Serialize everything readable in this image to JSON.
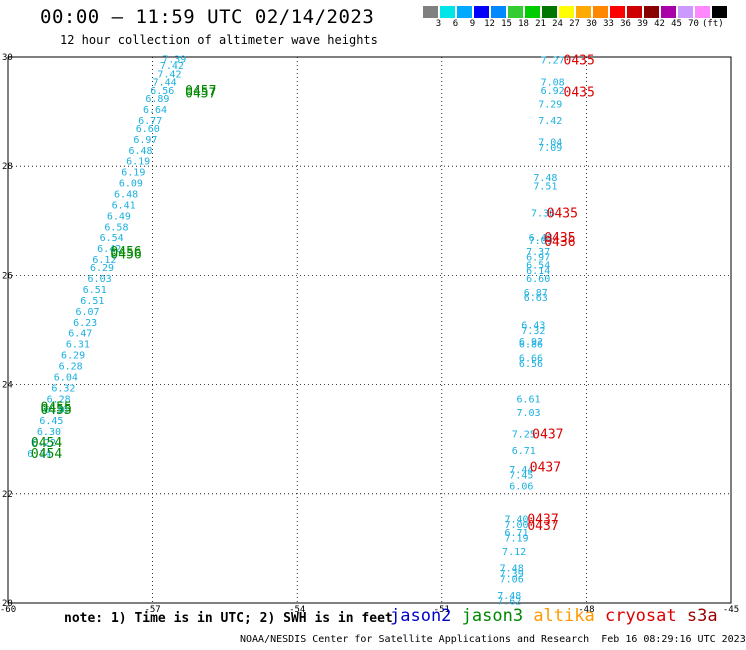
{
  "header": {
    "title": "00:00 – 11:59 UTC 02/14/2023",
    "subtitle": "12 hour collection of altimeter wave heights"
  },
  "legend": {
    "colors": [
      "#808080",
      "#00e5e5",
      "#00aaff",
      "#0000ff",
      "#0088ff",
      "#33cc33",
      "#00cc00",
      "#007700",
      "#ffff00",
      "#ffaa00",
      "#ff8800",
      "#ff0000",
      "#cc0000",
      "#880000",
      "#aa00aa",
      "#cc99ff",
      "#ff88ff",
      "#000000"
    ],
    "labels": [
      "3",
      "6",
      "9",
      "12",
      "15",
      "18",
      "21",
      "24",
      "27",
      "30",
      "33",
      "36",
      "39",
      "42",
      "45",
      "70",
      "(ft)"
    ]
  },
  "chart_data": {
    "type": "scatter",
    "xlim": [
      -60,
      -45
    ],
    "ylim": [
      20,
      30
    ],
    "xticks": [
      "-60",
      "-57",
      "-54",
      "-51",
      "-48",
      "-45"
    ],
    "yticks": [
      "30",
      "28",
      "26",
      "24",
      "22",
      "20"
    ],
    "colors": {
      "wave": "#1ab0e0",
      "jason3": "#008800",
      "cryosat": "#dd0000"
    },
    "tracks": [
      {
        "name": "west",
        "points": [
          {
            "x": -56.55,
            "y": 29.97,
            "v": "7.39"
          },
          {
            "x": -56.6,
            "y": 29.85,
            "v": "7.42"
          },
          {
            "x": -56.65,
            "y": 29.7,
            "v": "7.42"
          },
          {
            "x": -56.75,
            "y": 29.55,
            "v": "7.44"
          },
          {
            "x": -56.8,
            "y": 29.4,
            "v": "6.56"
          },
          {
            "x": -56.9,
            "y": 29.25,
            "v": "6.89"
          },
          {
            "x": -56.95,
            "y": 29.05,
            "v": "6.64"
          },
          {
            "x": -57.05,
            "y": 28.85,
            "v": "6.77"
          },
          {
            "x": -57.1,
            "y": 28.7,
            "v": "6.60"
          },
          {
            "x": -57.15,
            "y": 28.5,
            "v": "6.97"
          },
          {
            "x": -57.25,
            "y": 28.3,
            "v": "6.48"
          },
          {
            "x": -57.3,
            "y": 28.1,
            "v": "6.19"
          },
          {
            "x": -57.4,
            "y": 27.9,
            "v": "6.19"
          },
          {
            "x": -57.45,
            "y": 27.7,
            "v": "6.09"
          },
          {
            "x": -57.55,
            "y": 27.5,
            "v": "6.48"
          },
          {
            "x": -57.6,
            "y": 27.3,
            "v": "6.41"
          },
          {
            "x": -57.7,
            "y": 27.1,
            "v": "6.49"
          },
          {
            "x": -57.75,
            "y": 26.9,
            "v": "6.58"
          },
          {
            "x": -57.85,
            "y": 26.7,
            "v": "6.54"
          },
          {
            "x": -57.9,
            "y": 26.5,
            "v": "6.42"
          },
          {
            "x": -58.0,
            "y": 26.3,
            "v": "6.12"
          },
          {
            "x": -58.05,
            "y": 26.15,
            "v": "6.29"
          },
          {
            "x": -58.1,
            "y": 25.95,
            "v": "6.03"
          },
          {
            "x": -58.2,
            "y": 25.75,
            "v": "6.51"
          },
          {
            "x": -58.25,
            "y": 25.55,
            "v": "6.51"
          },
          {
            "x": -58.35,
            "y": 25.35,
            "v": "6.07"
          },
          {
            "x": -58.4,
            "y": 25.15,
            "v": "6.23"
          },
          {
            "x": -58.5,
            "y": 24.95,
            "v": "6.47"
          },
          {
            "x": -58.55,
            "y": 24.75,
            "v": "6.31"
          },
          {
            "x": -58.65,
            "y": 24.55,
            "v": "6.29"
          },
          {
            "x": -58.7,
            "y": 24.35,
            "v": "6.28"
          },
          {
            "x": -58.8,
            "y": 24.15,
            "v": "6.04"
          },
          {
            "x": -58.85,
            "y": 23.95,
            "v": "6.32"
          },
          {
            "x": -58.95,
            "y": 23.75,
            "v": "6.28"
          },
          {
            "x": -59.0,
            "y": 23.55,
            "v": "6.36"
          },
          {
            "x": -59.1,
            "y": 23.35,
            "v": "6.45"
          },
          {
            "x": -59.15,
            "y": 23.15,
            "v": "6.30"
          },
          {
            "x": -59.25,
            "y": 22.95,
            "v": "6.22"
          },
          {
            "x": -59.35,
            "y": 22.75,
            "v": "6.34"
          }
        ]
      },
      {
        "name": "east",
        "points": [
          {
            "x": -48.7,
            "y": 29.95,
            "v": "7.27"
          },
          {
            "x": -48.7,
            "y": 29.55,
            "v": "7.08"
          },
          {
            "x": -48.7,
            "y": 29.4,
            "v": "6.92"
          },
          {
            "x": -48.75,
            "y": 29.15,
            "v": "7.29"
          },
          {
            "x": -48.75,
            "y": 28.85,
            "v": "7.42"
          },
          {
            "x": -48.75,
            "y": 28.45,
            "v": "7.04"
          },
          {
            "x": -48.75,
            "y": 28.35,
            "v": "7.09"
          },
          {
            "x": -48.85,
            "y": 27.8,
            "v": "7.48"
          },
          {
            "x": -48.85,
            "y": 27.65,
            "v": "7.51"
          },
          {
            "x": -48.9,
            "y": 27.15,
            "v": "7.36"
          },
          {
            "x": -48.95,
            "y": 26.7,
            "v": "6.48"
          },
          {
            "x": -48.95,
            "y": 26.65,
            "v": "7.09"
          },
          {
            "x": -49.0,
            "y": 26.45,
            "v": "7.37"
          },
          {
            "x": -49.0,
            "y": 26.35,
            "v": "6.97"
          },
          {
            "x": -49.0,
            "y": 26.2,
            "v": "6.54"
          },
          {
            "x": -49.0,
            "y": 26.1,
            "v": "6.14"
          },
          {
            "x": -49.0,
            "y": 25.95,
            "v": "6.60"
          },
          {
            "x": -49.05,
            "y": 25.7,
            "v": "6.87"
          },
          {
            "x": -49.05,
            "y": 25.6,
            "v": "6.63"
          },
          {
            "x": -49.1,
            "y": 25.1,
            "v": "6.43"
          },
          {
            "x": -49.1,
            "y": 25.0,
            "v": "7.32"
          },
          {
            "x": -49.15,
            "y": 24.8,
            "v": "6.92"
          },
          {
            "x": -49.15,
            "y": 24.75,
            "v": "6.86"
          },
          {
            "x": -49.15,
            "y": 24.5,
            "v": "6.66"
          },
          {
            "x": -49.15,
            "y": 24.4,
            "v": "6.56"
          },
          {
            "x": -49.2,
            "y": 23.75,
            "v": "6.61"
          },
          {
            "x": -49.2,
            "y": 23.5,
            "v": "7.03"
          },
          {
            "x": -49.3,
            "y": 23.1,
            "v": "7.25"
          },
          {
            "x": -49.3,
            "y": 22.8,
            "v": "6.71"
          },
          {
            "x": -49.35,
            "y": 22.45,
            "v": "7.44"
          },
          {
            "x": -49.35,
            "y": 22.35,
            "v": "7.45"
          },
          {
            "x": -49.35,
            "y": 22.15,
            "v": "6.06"
          },
          {
            "x": -49.45,
            "y": 21.55,
            "v": "7.40"
          },
          {
            "x": -49.45,
            "y": 21.45,
            "v": "7.00"
          },
          {
            "x": -49.45,
            "y": 21.3,
            "v": "6.71"
          },
          {
            "x": -49.45,
            "y": 21.2,
            "v": "7.19"
          },
          {
            "x": -49.5,
            "y": 20.95,
            "v": "7.12"
          },
          {
            "x": -49.55,
            "y": 20.65,
            "v": "7.48"
          },
          {
            "x": -49.55,
            "y": 20.55,
            "v": "7.39"
          },
          {
            "x": -49.55,
            "y": 20.45,
            "v": "7.06"
          },
          {
            "x": -49.6,
            "y": 20.15,
            "v": "7.48"
          },
          {
            "x": -49.6,
            "y": 20.05,
            "v": "7.62"
          }
        ]
      }
    ],
    "passes": [
      {
        "x": -56.0,
        "y": 29.4,
        "label": "0457",
        "sat": "jason3"
      },
      {
        "x": -56.0,
        "y": 29.35,
        "label": "0457",
        "sat": "jason3"
      },
      {
        "x": -57.55,
        "y": 26.45,
        "label": "0456",
        "sat": "jason3"
      },
      {
        "x": -57.55,
        "y": 26.4,
        "label": "0456",
        "sat": "jason3"
      },
      {
        "x": -59.0,
        "y": 23.6,
        "label": "0455",
        "sat": "jason3"
      },
      {
        "x": -59.0,
        "y": 23.55,
        "label": "0455",
        "sat": "jason3"
      },
      {
        "x": -59.2,
        "y": 22.95,
        "label": "0454",
        "sat": "jason3"
      },
      {
        "x": -59.2,
        "y": 22.75,
        "label": "0454",
        "sat": "jason3"
      },
      {
        "x": -48.15,
        "y": 29.95,
        "label": "0435",
        "sat": "cryosat"
      },
      {
        "x": -48.15,
        "y": 29.37,
        "label": "0435",
        "sat": "cryosat"
      },
      {
        "x": -48.5,
        "y": 27.15,
        "label": "0435",
        "sat": "cryosat"
      },
      {
        "x": -48.55,
        "y": 26.7,
        "label": "0435",
        "sat": "cryosat"
      },
      {
        "x": -48.55,
        "y": 26.63,
        "label": "0436",
        "sat": "cryosat"
      },
      {
        "x": -48.8,
        "y": 23.1,
        "label": "0437",
        "sat": "cryosat"
      },
      {
        "x": -48.85,
        "y": 22.5,
        "label": "0437",
        "sat": "cryosat"
      },
      {
        "x": -48.9,
        "y": 21.55,
        "label": "0437",
        "sat": "cryosat"
      },
      {
        "x": -48.9,
        "y": 21.43,
        "label": "0437",
        "sat": "cryosat"
      }
    ]
  },
  "footer": {
    "note": "note: 1) Time is in UTC; 2) SWH is in feet",
    "satellites": [
      {
        "name": "jason2",
        "color": "#0000cc"
      },
      {
        "name": "jason3",
        "color": "#008800"
      },
      {
        "name": "altika",
        "color": "#ff9900"
      },
      {
        "name": "cryosat",
        "color": "#dd0000"
      },
      {
        "name": "s3a",
        "color": "#990000"
      }
    ],
    "credit": "NOAA/NESDIS Center for Satellite Applications and Research  Feb 16 08:29:16 UTC 2023"
  }
}
